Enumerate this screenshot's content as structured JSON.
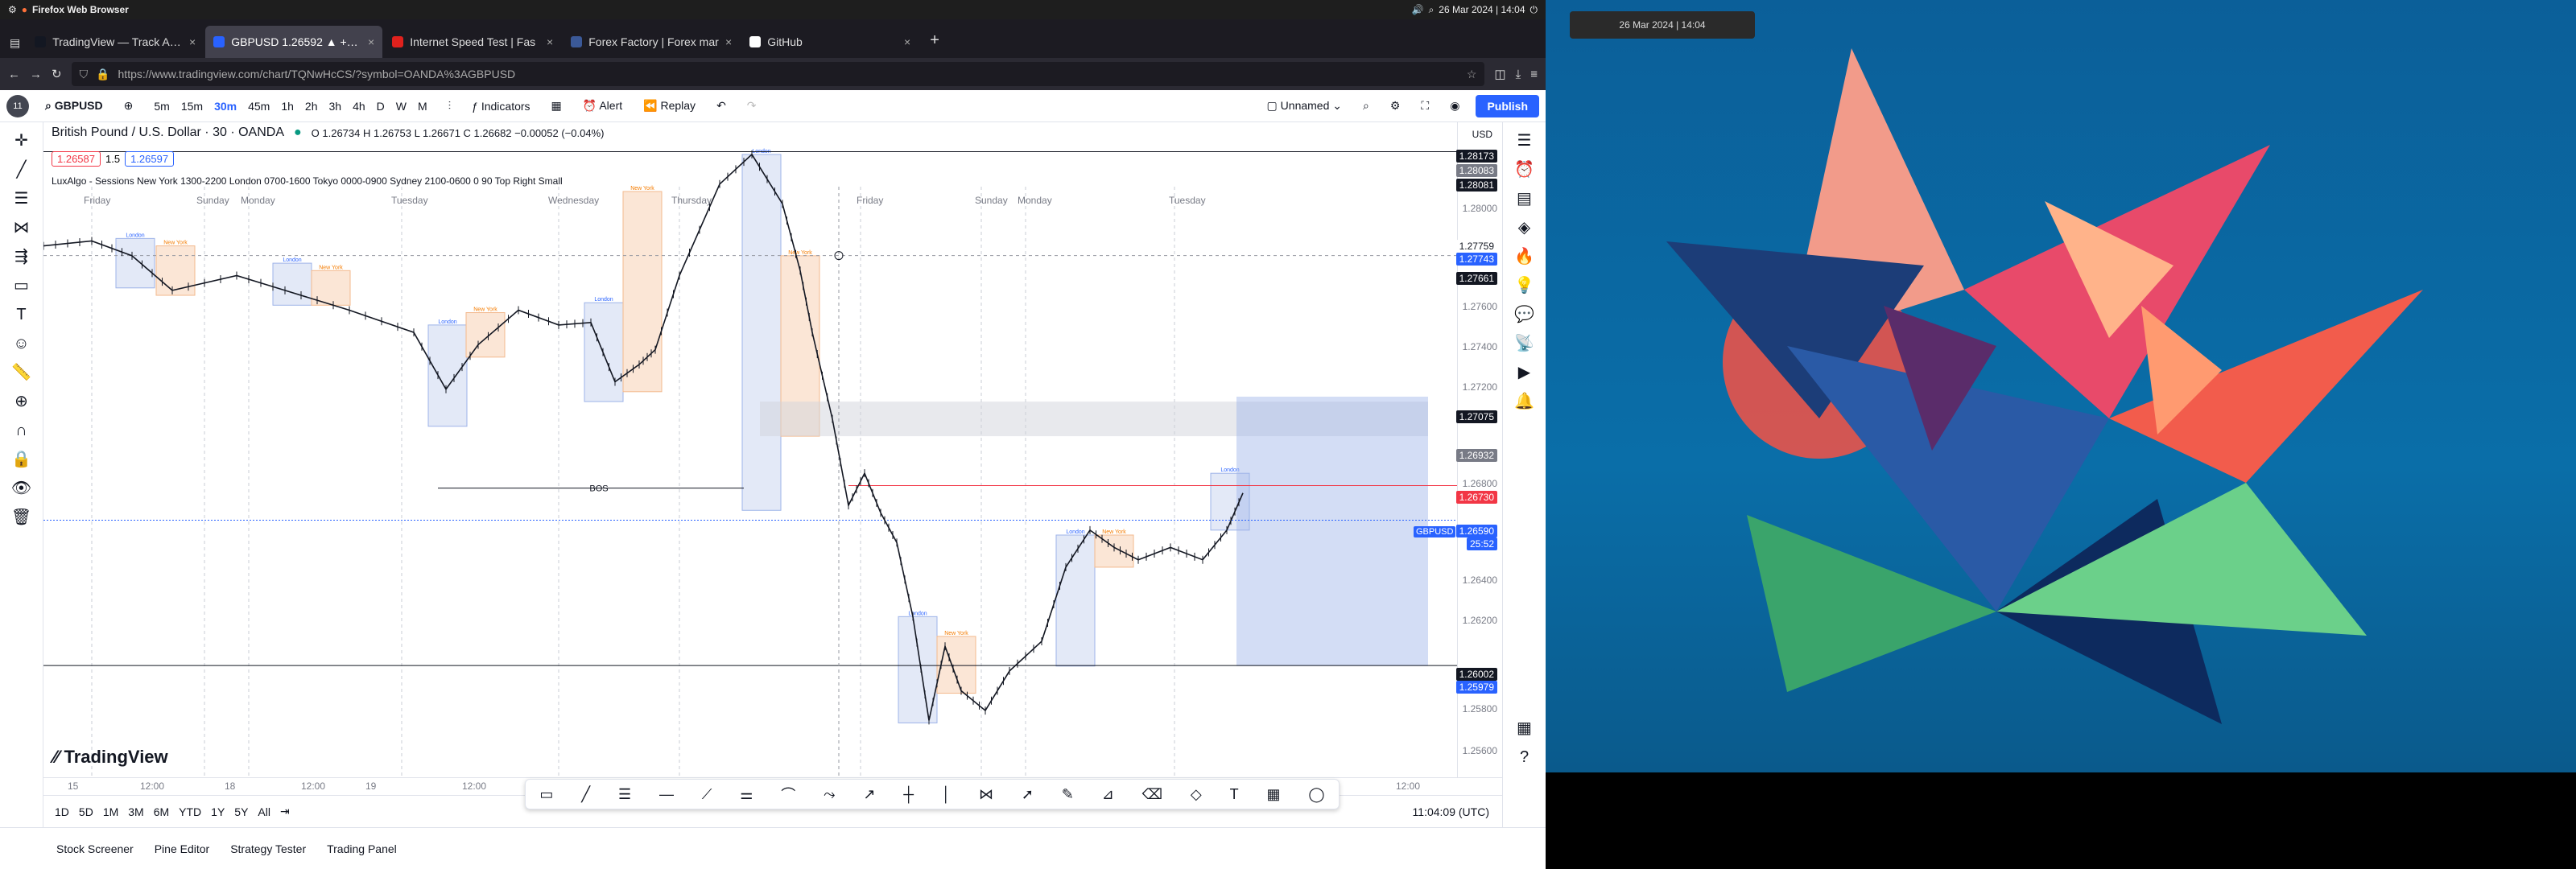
{
  "gnome": {
    "app": "Firefox Web Browser",
    "clock": "26 Mar 2024 | 14:04"
  },
  "tabs": [
    {
      "title": "TradingView — Track All M",
      "color": "#131722",
      "active": false
    },
    {
      "title": "GBPUSD 1.26592 ▲ +0.18",
      "color": "#2962ff",
      "active": true
    },
    {
      "title": "Internet Speed Test | Fas",
      "color": "#e0211d",
      "active": false
    },
    {
      "title": "Forex Factory | Forex mar",
      "color": "#3b5998",
      "active": false
    },
    {
      "title": "GitHub",
      "color": "#ffffff",
      "active": false
    }
  ],
  "url": "https://www.tradingview.com/chart/TQNwHcCS/?symbol=OANDA%3AGBPUSD",
  "toolbar": {
    "symbol": "GBPUSD",
    "intervals": [
      "5m",
      "15m",
      "30m",
      "45m",
      "1h",
      "2h",
      "3h",
      "4h",
      "D",
      "W",
      "M"
    ],
    "selected_interval": "30m",
    "indicators": "Indicators",
    "alert": "Alert",
    "replay": "Replay",
    "layout": "Unnamed",
    "publish": "Publish",
    "avatar_badge": "11"
  },
  "chart_header": {
    "title": "British Pound / U.S. Dollar · 30 · OANDA",
    "ohlc": "O 1.26734  H 1.26753  L 1.26671  C 1.26682  −0.00052 (−0.04%)",
    "sell": "1.26587",
    "spread": "1.5",
    "buy": "1.26597",
    "currency": "USD",
    "indicator": "LuxAlgo - Sessions  New York 1300-2200  London 0700-1600  Tokyo 0000-0900  Sydney 2100-0600  0  90  Top  Right  Small",
    "watermark": "TradingView",
    "bos_label": "BOS"
  },
  "price_axis": {
    "ticks": [
      "1.28000",
      "1.27600",
      "1.27400",
      "1.27200",
      "1.26800",
      "1.26400",
      "1.26200",
      "1.25800",
      "1.25600"
    ],
    "labels": [
      {
        "text": "1.28173",
        "bg": "#131722"
      },
      {
        "text": "1.28083",
        "bg": "#787b86"
      },
      {
        "text": "1.28081",
        "bg": "#131722"
      },
      {
        "text": "1.27759",
        "bg": "#ffffff"
      },
      {
        "text": "1.27743",
        "bg": "#2962ff"
      },
      {
        "text": "1.27661",
        "bg": "#131722"
      },
      {
        "text": "1.27075",
        "bg": "#131722"
      },
      {
        "text": "1.26932",
        "bg": "#787b86"
      },
      {
        "text": "1.26730",
        "bg": "#f23645"
      },
      {
        "text": "1.26590",
        "bg": "#2962ff"
      },
      {
        "text": "25:52",
        "bg": "#2962ff"
      },
      {
        "text": "1.26002",
        "bg": "#131722"
      },
      {
        "text": "1.25979",
        "bg": "#2962ff"
      }
    ],
    "symbol_tag": "GBPUSD"
  },
  "time_axis": {
    "days": [
      "Friday",
      "Sunday",
      "Monday",
      "Tuesday",
      "Wednesday",
      "Thursday",
      "Friday",
      "Sunday",
      "Monday",
      "Tuesday"
    ],
    "ticks": [
      "15",
      "12:00",
      "18",
      "12:00",
      "19",
      "12:00",
      "12:00"
    ],
    "time": "11:04:09 (UTC)"
  },
  "ranges": [
    "1D",
    "5D",
    "1M",
    "3M",
    "6M",
    "YTD",
    "1Y",
    "5Y",
    "All"
  ],
  "bottom_tabs": [
    "Stock Screener",
    "Pine Editor",
    "Strategy Tester",
    "Trading Panel"
  ],
  "session_labels": {
    "london": "London",
    "newyork": "New York"
  },
  "desktop_clock": "26 Mar 2024 | 14:04"
}
